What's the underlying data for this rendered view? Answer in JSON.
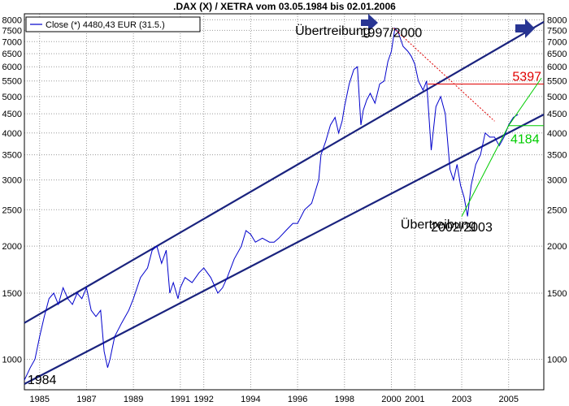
{
  "chart_data": {
    "type": "line",
    "title": ".DAX (X) / XETRA vom 03.05.1984 bis 02.01.2006",
    "legend": "Close (*) 4480,43 EUR (31.5.)",
    "legend_position": "top-left",
    "y_scale": "log",
    "ylim": [
      830,
      8300
    ],
    "y_ticks": [
      1000,
      1500,
      2000,
      2500,
      3000,
      3500,
      4000,
      4500,
      5000,
      5500,
      6000,
      6500,
      7000,
      7500,
      8000
    ],
    "x_ticks": [
      1985,
      1987,
      1989,
      1991,
      1992,
      1994,
      1996,
      1998,
      2000,
      2001,
      2003,
      2005
    ],
    "xlim": [
      1984.35,
      2006.5
    ],
    "grid": true,
    "colors": {
      "series": "#0000cc",
      "channel": "#1a237e",
      "resistance": "#e00000",
      "support": "#00cc00",
      "arrow": "#283593"
    },
    "series": [
      {
        "x": [
          1984.35,
          1984.6,
          1984.8,
          1985.0,
          1985.2,
          1985.4,
          1985.6,
          1985.8,
          1986.0,
          1986.2,
          1986.4,
          1986.6,
          1986.8,
          1987.0,
          1987.2,
          1987.4,
          1987.6,
          1987.75,
          1987.9,
          1988.0,
          1988.2,
          1988.5,
          1988.8,
          1989.0,
          1989.3,
          1989.6,
          1989.8,
          1990.0,
          1990.2,
          1990.4,
          1990.55,
          1990.7,
          1990.9,
          1991.0,
          1991.2,
          1991.5,
          1991.8,
          1992.0,
          1992.3,
          1992.6,
          1992.8,
          1993.0,
          1993.3,
          1993.6,
          1993.8,
          1994.0,
          1994.2,
          1994.5,
          1994.8,
          1995.0,
          1995.2,
          1995.5,
          1995.8,
          1996.0,
          1996.3,
          1996.6,
          1996.9,
          1997.0,
          1997.2,
          1997.4,
          1997.6,
          1997.75,
          1997.9,
          1998.0,
          1998.2,
          1998.4,
          1998.55,
          1998.7,
          1998.8,
          1998.95,
          1999.1,
          1999.3,
          1999.5,
          1999.7,
          1999.85,
          2000.0,
          2000.15,
          2000.3,
          2000.5,
          2000.7,
          2000.85,
          2001.0,
          2001.15,
          2001.35,
          2001.5,
          2001.7,
          2001.9,
          2002.1,
          2002.3,
          2002.5,
          2002.65,
          2002.8,
          2002.95,
          2003.1,
          2003.25,
          2003.4,
          2003.6,
          2003.8,
          2004.0,
          2004.2,
          2004.4,
          2004.6,
          2004.8,
          2005.0,
          2005.2,
          2005.4
        ],
        "values": [
          880,
          950,
          1000,
          1150,
          1300,
          1450,
          1500,
          1400,
          1550,
          1450,
          1400,
          1500,
          1450,
          1550,
          1350,
          1300,
          1350,
          1050,
          950,
          1000,
          1150,
          1250,
          1350,
          1450,
          1650,
          1750,
          1950,
          2000,
          1800,
          1950,
          1500,
          1600,
          1450,
          1550,
          1650,
          1600,
          1700,
          1750,
          1650,
          1500,
          1550,
          1650,
          1850,
          2000,
          2200,
          2150,
          2050,
          2100,
          2050,
          2050,
          2100,
          2200,
          2300,
          2300,
          2500,
          2600,
          3000,
          3500,
          3800,
          4200,
          4400,
          4000,
          4300,
          4700,
          5400,
          5900,
          6000,
          4200,
          4600,
          4900,
          5100,
          4800,
          5400,
          5500,
          6200,
          6600,
          7600,
          7400,
          6800,
          6600,
          6400,
          6100,
          5500,
          5200,
          5500,
          3600,
          4700,
          5000,
          4500,
          3200,
          3000,
          3300,
          2900,
          2700,
          2400,
          2900,
          3300,
          3500,
          4000,
          3900,
          3900,
          3700,
          3900,
          4200,
          4400,
          4480
        ]
      }
    ],
    "annotations": [
      {
        "text": "Übertreibung",
        "x": 1997.5,
        "y": 7300
      },
      {
        "text": "1997/2000",
        "x": 2000.0,
        "y": 7200
      },
      {
        "text": "Übertreibung",
        "x": 2002.0,
        "y": 2230
      },
      {
        "text": "2002/2003",
        "x": 2003.0,
        "y": 2190
      },
      {
        "text": "1984",
        "x": 1985.1,
        "y": 860
      }
    ],
    "levels": [
      {
        "label": "5397",
        "value": 5397,
        "color": "resistance"
      },
      {
        "label": "4184",
        "value": 4184,
        "color": "support"
      }
    ]
  }
}
